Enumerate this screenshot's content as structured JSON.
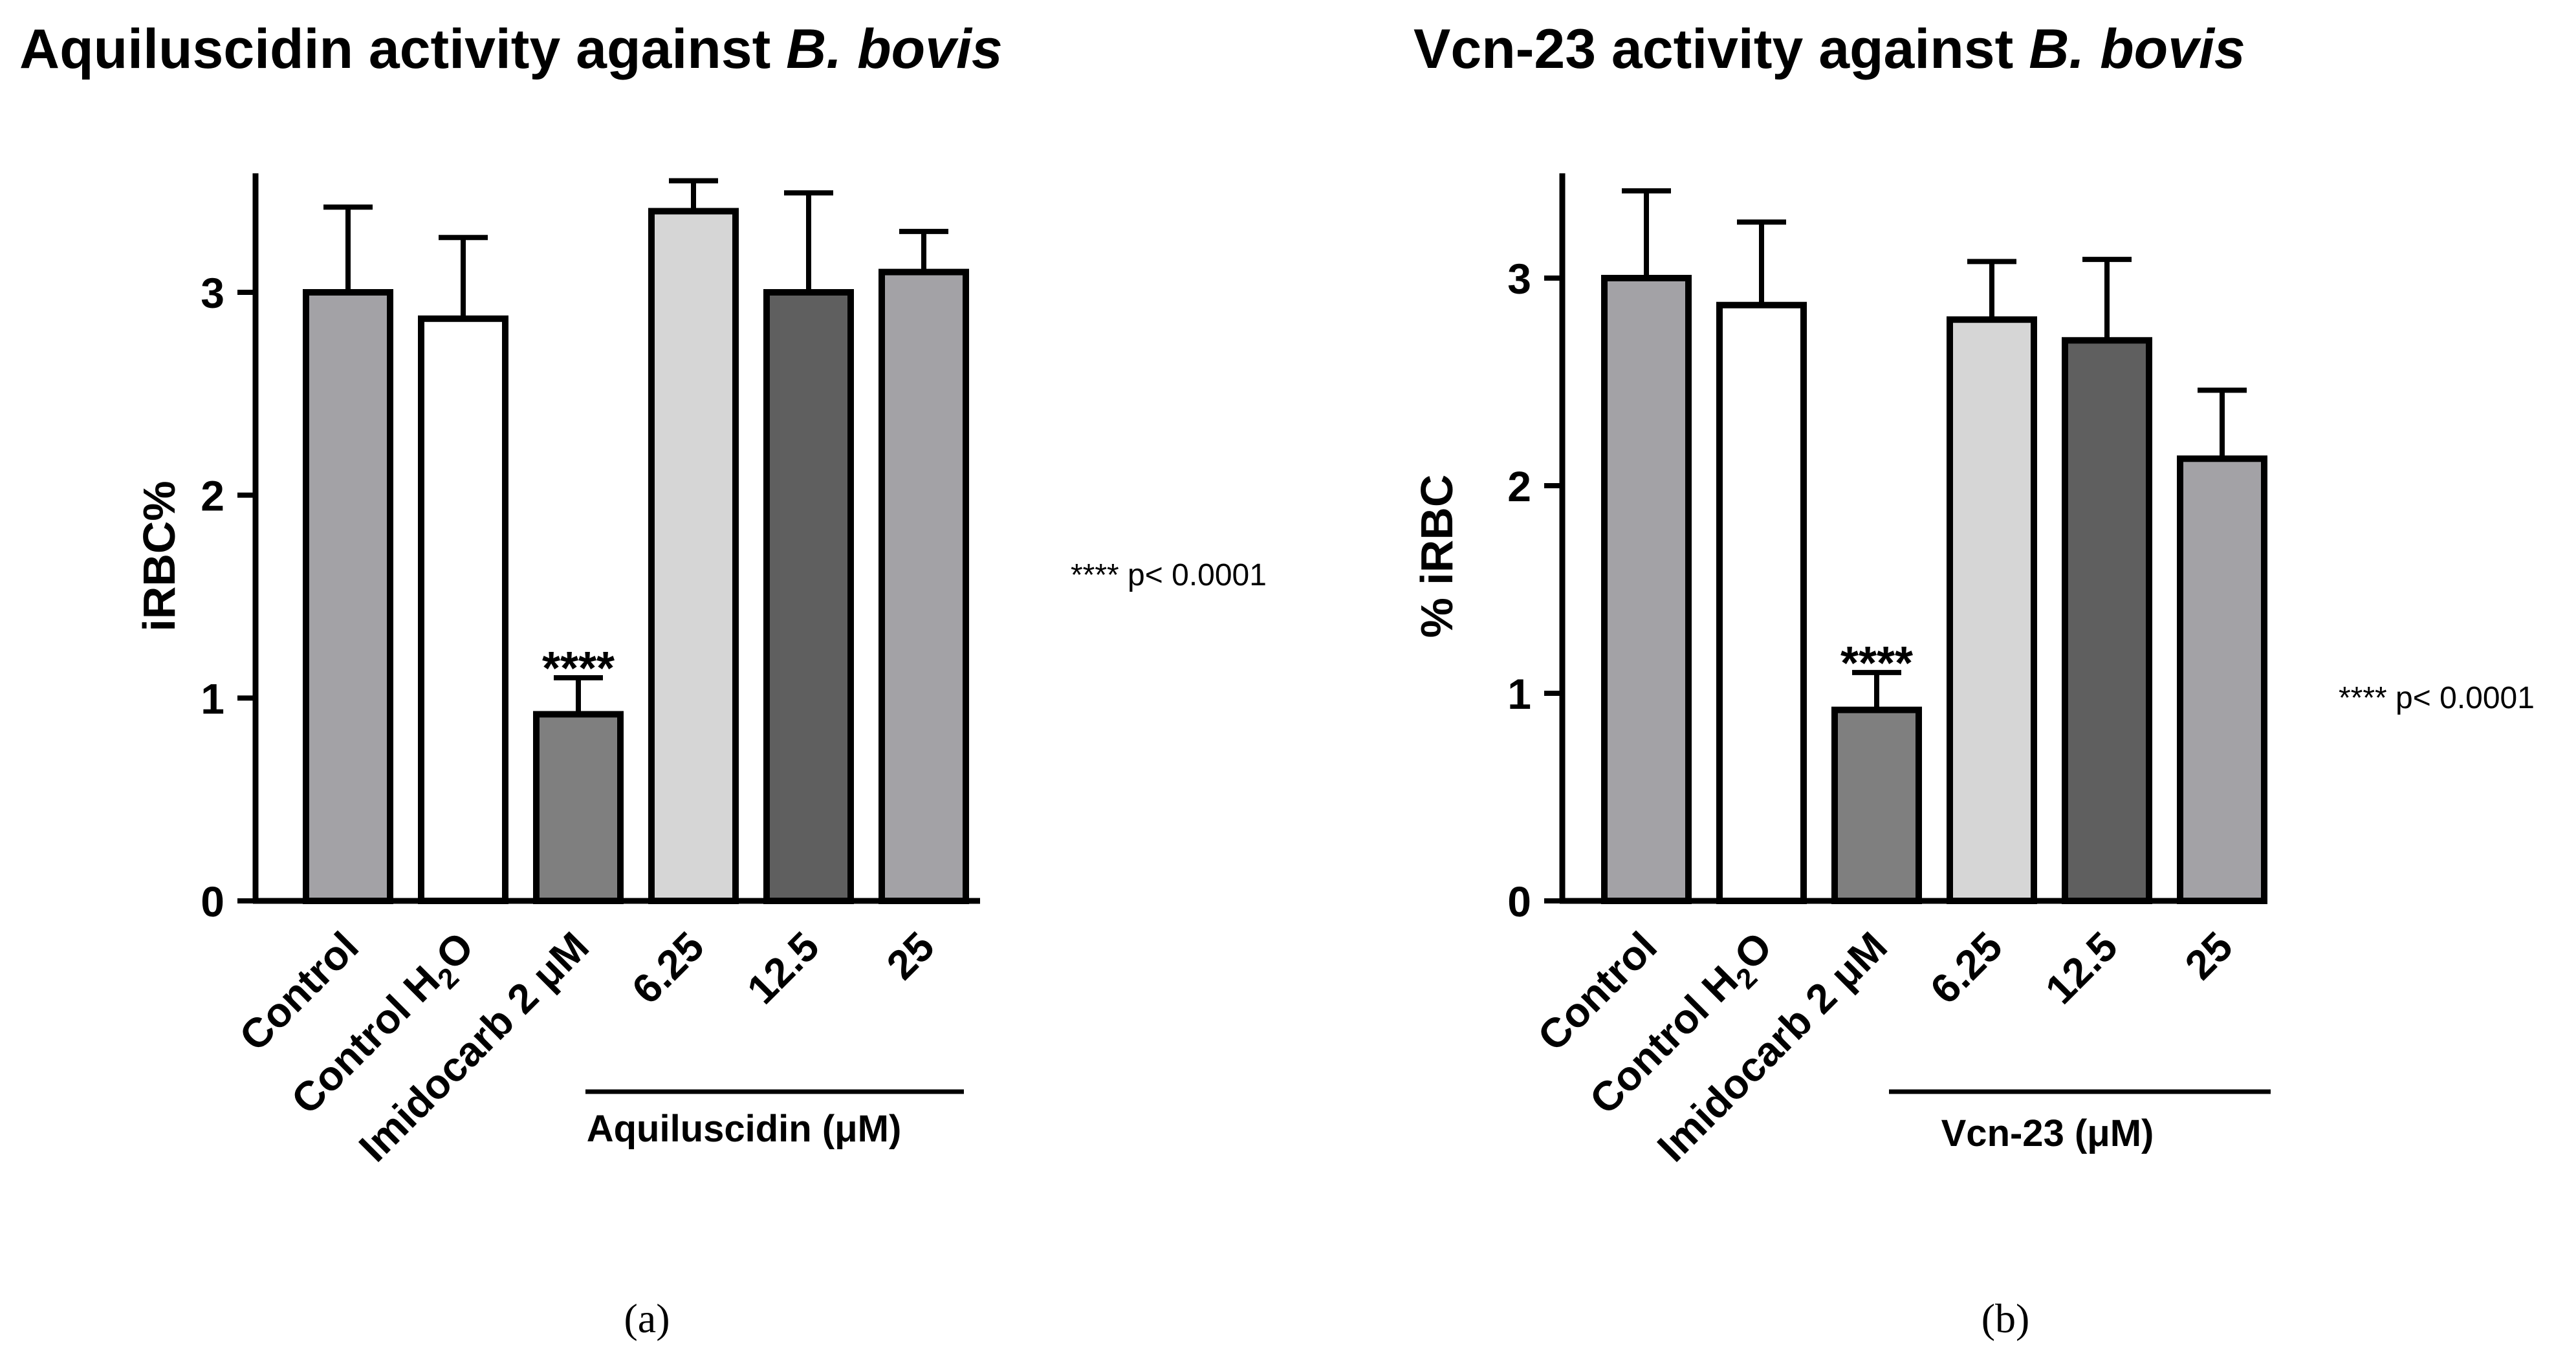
{
  "colors": {
    "control": "#a3a2a6",
    "control_h2o": "#ffffff",
    "imidocarb": "#7f7f7f",
    "dose_low": "#d6d6d6",
    "dose_mid": "#5f5f5f",
    "dose_high": "#a3a2a6",
    "stroke": "#000000"
  },
  "chart_data": [
    {
      "type": "bar",
      "panel": "(a)",
      "title": "Aquiluscidin activity against",
      "title_italic": "B. bovis",
      "ylabel": "iRBC%",
      "ylim": [
        0,
        3.5
      ],
      "yticks": [
        "0",
        "1",
        "2",
        "3"
      ],
      "categories": [
        "Control",
        "Control H",
        "Imidocarb 2 μM",
        "6.25",
        "12.5",
        "25"
      ],
      "subscript": "2",
      "subscript_suffix": "O",
      "values": [
        3.0,
        2.87,
        0.92,
        3.4,
        3.0,
        3.1
      ],
      "errors": [
        0.42,
        0.4,
        0.18,
        0.15,
        0.49,
        0.2
      ],
      "color_keys": [
        "control",
        "control_h2o",
        "imidocarb",
        "dose_low",
        "dose_mid",
        "dose_high"
      ],
      "annotation": "****",
      "annotation_index": 2,
      "group_label": "Aquiluscidin (μM)",
      "note": "**** p< 0.0001"
    },
    {
      "type": "bar",
      "panel": "(b)",
      "title": "Vcn-23 activity against",
      "title_italic": "B. bovis",
      "ylabel": "% iRBC",
      "ylim": [
        0,
        3.5
      ],
      "yticks": [
        "0",
        "1",
        "2",
        "3"
      ],
      "categories": [
        "Control",
        "Control H",
        "Imidocarb 2 μM",
        "6.25",
        "12.5",
        "25"
      ],
      "subscript": "2",
      "subscript_suffix": "O",
      "values": [
        3.0,
        2.87,
        0.92,
        2.8,
        2.7,
        2.13
      ],
      "errors": [
        0.42,
        0.4,
        0.18,
        0.28,
        0.39,
        0.33
      ],
      "color_keys": [
        "control",
        "control_h2o",
        "imidocarb",
        "dose_low",
        "dose_mid",
        "dose_high"
      ],
      "annotation": "****",
      "annotation_index": 2,
      "group_label": "Vcn-23 (μM)",
      "note": "**** p< 0.0001"
    }
  ]
}
